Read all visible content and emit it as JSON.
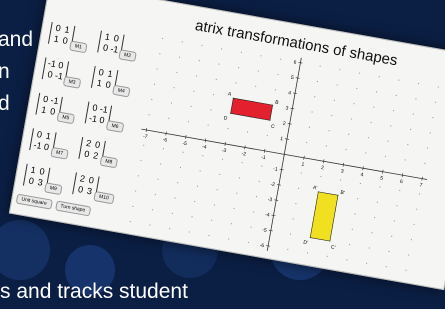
{
  "background_text": [
    "and",
    "n",
    "d",
    "s and tracks student"
  ],
  "window": {
    "title": "atrix transformations of shapes",
    "matrices": [
      {
        "rows": [
          [
            0,
            1
          ],
          [
            1,
            0
          ]
        ],
        "button": "M1"
      },
      {
        "rows": [
          [
            1,
            0
          ],
          [
            0,
            -1
          ]
        ],
        "button": "M2"
      },
      {
        "rows": [
          [
            -1,
            0
          ],
          [
            0,
            -1
          ]
        ],
        "button": "M3"
      },
      {
        "rows": [
          [
            0,
            1
          ],
          [
            1,
            0
          ]
        ],
        "button": "M4"
      },
      {
        "rows": [
          [
            0,
            -1
          ],
          [
            1,
            0
          ]
        ],
        "button": "M5"
      },
      {
        "rows": [
          [
            0,
            -1
          ],
          [
            -1,
            0
          ]
        ],
        "button": "M6"
      },
      {
        "rows": [
          [
            0,
            1
          ],
          [
            -1,
            0
          ]
        ],
        "button": "M7"
      },
      {
        "rows": [
          [
            2,
            0
          ],
          [
            0,
            2
          ]
        ],
        "button": "M8"
      },
      {
        "rows": [
          [
            1,
            0
          ],
          [
            0,
            3
          ]
        ],
        "button": "M9"
      },
      {
        "rows": [
          [
            2,
            0
          ],
          [
            0,
            3
          ]
        ],
        "button": "M10"
      }
    ],
    "buttons": [
      "Unit square",
      "Turn shape"
    ],
    "graph": {
      "xticks": [
        -7,
        -6,
        -5,
        -4,
        -3,
        -2,
        -1,
        1,
        2,
        3,
        4,
        5,
        6,
        7
      ],
      "yticks": [
        -6,
        -5,
        -4,
        -3,
        -2,
        -1,
        1,
        2,
        3,
        4,
        5,
        6
      ],
      "shapes": [
        {
          "color": "#e3202e",
          "points": [
            [
              -3,
              3
            ],
            [
              -1,
              3
            ],
            [
              -1,
              2
            ],
            [
              -3,
              2
            ]
          ],
          "labels": [
            "A",
            "B",
            "C",
            "D"
          ]
        },
        {
          "color": "#f0e020",
          "points": [
            [
              2,
              -2
            ],
            [
              3,
              -2
            ],
            [
              3,
              -5
            ],
            [
              2,
              -5
            ]
          ],
          "labels": [
            "A'",
            "B'",
            "C'",
            "D'"
          ]
        }
      ]
    }
  }
}
